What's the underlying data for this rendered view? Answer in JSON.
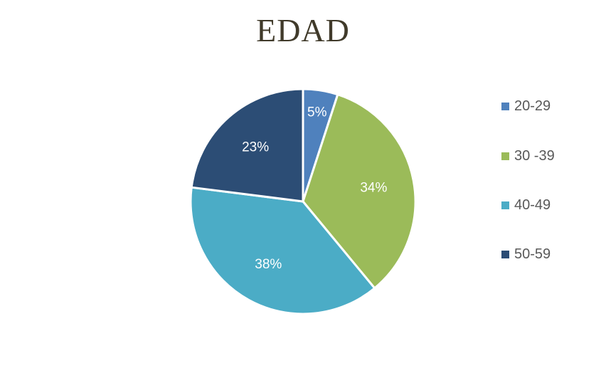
{
  "chart_data": {
    "type": "pie",
    "title": "EDAD",
    "categories": [
      "20-29",
      "30 -39",
      "40-49",
      "50-59"
    ],
    "values": [
      5,
      34,
      38,
      23
    ],
    "value_labels": [
      "5%",
      "34%",
      "38%",
      "23%"
    ],
    "colors": [
      "#4f81bd",
      "#9bbb59",
      "#4bacc6",
      "#2c4d75"
    ],
    "legend": "right"
  },
  "legend": {
    "items": [
      {
        "label": "20-29",
        "color": "#4f81bd"
      },
      {
        "label": "30 -39",
        "color": "#9bbb59"
      },
      {
        "label": "40-49",
        "color": "#4bacc6"
      },
      {
        "label": "50-59",
        "color": "#2c4d75"
      }
    ]
  }
}
